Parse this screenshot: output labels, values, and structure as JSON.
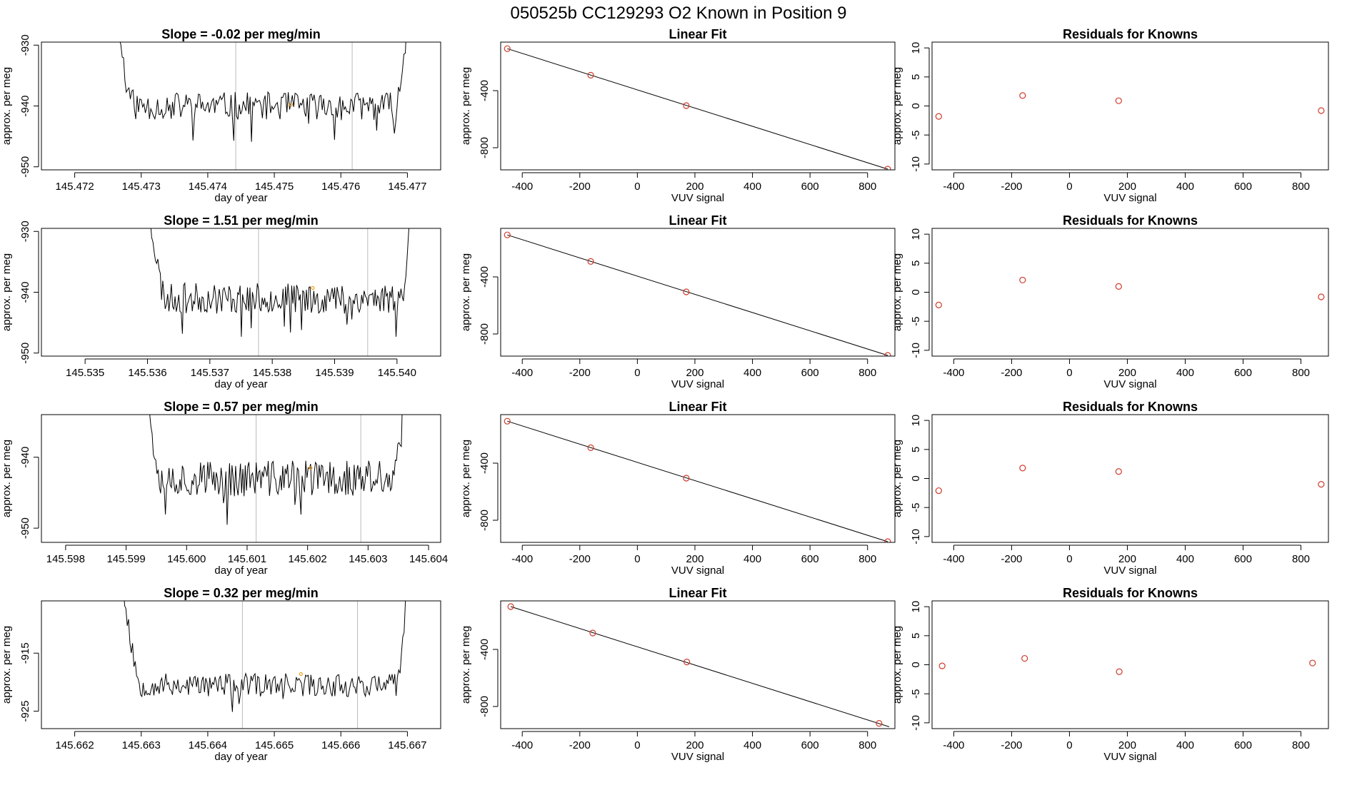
{
  "main_title": "050525b      CC129293    O2 Known in Position  9",
  "colors": {
    "line": "#000000",
    "points": "#d03a2a",
    "marker": "#f0a020",
    "vlines": "#bbbbbb"
  },
  "chart_data": [
    {
      "type": "line",
      "title": "Slope =  -0.02  per meg/min",
      "xlabel": "day of year",
      "ylabel": "approx. per meg",
      "xlim": [
        145.4715,
        145.4775
      ],
      "ylim": [
        -950.5,
        -929.5
      ],
      "xticks": [
        "145.472",
        "145.473",
        "145.474",
        "145.475",
        "145.476",
        "145.477"
      ],
      "yticks": [
        "-930",
        "-940",
        "-950"
      ],
      "x_start": 145.47255,
      "x_end": 145.47705,
      "baseline": -940,
      "noise": 2.3,
      "seed": 11,
      "vlines": [
        145.47442,
        145.47617
      ],
      "marker": {
        "x": 145.47525,
        "y": -939.8
      }
    },
    {
      "type": "scatter",
      "title": "Linear Fit",
      "xlabel": "VUV signal",
      "ylabel": "approx. per meg",
      "xlim": [
        -475,
        895
      ],
      "ylim": [
        -955,
        -60
      ],
      "xticks": [
        "-400",
        "-200",
        "0",
        "200",
        "400",
        "600",
        "800"
      ],
      "yticks": [
        "-400",
        "-800"
      ],
      "x": [
        -452,
        -162,
        170,
        870
      ],
      "y": [
        -106,
        -292,
        -505,
        -950
      ],
      "fit": [
        [
          -452,
          -106
        ],
        [
          870,
          -950
        ]
      ]
    },
    {
      "type": "scatter",
      "title": "Residuals for Knowns",
      "xlabel": "VUV signal",
      "ylabel": "approx. per meg",
      "xlim": [
        -475,
        895
      ],
      "ylim": [
        -11,
        11
      ],
      "xticks": [
        "-400",
        "-200",
        "0",
        "200",
        "400",
        "600",
        "800"
      ],
      "yticks": [
        "10",
        "5",
        "0",
        "-5",
        "-10"
      ],
      "x": [
        -452,
        -162,
        170,
        870
      ],
      "y": [
        -1.8,
        1.8,
        0.9,
        -0.8
      ]
    },
    {
      "type": "line",
      "title": "Slope =  1.51  per meg/min",
      "xlabel": "day of year",
      "ylabel": "approx. per meg",
      "xlim": [
        145.5343,
        145.5407
      ],
      "ylim": [
        -950.5,
        -929.5
      ],
      "xticks": [
        "145.535",
        "145.536",
        "145.537",
        "145.538",
        "145.539",
        "145.540"
      ],
      "yticks": [
        "-930",
        "-940",
        "-950"
      ],
      "x_start": 145.53595,
      "x_end": 145.54028,
      "baseline": -941,
      "noise": 2.5,
      "seed": 23,
      "vlines": [
        145.53778,
        145.53953
      ],
      "marker": {
        "x": 145.53865,
        "y": -939.3
      }
    },
    {
      "type": "scatter",
      "title": "Linear Fit",
      "xlabel": "VUV signal",
      "ylabel": "approx. per meg",
      "xlim": [
        -475,
        895
      ],
      "ylim": [
        -955,
        -60
      ],
      "xticks": [
        "-400",
        "-200",
        "0",
        "200",
        "400",
        "600",
        "800"
      ],
      "yticks": [
        "-400",
        "-800"
      ],
      "x": [
        -452,
        -162,
        170,
        870
      ],
      "y": [
        -106,
        -292,
        -505,
        -950
      ],
      "fit": [
        [
          -452,
          -106
        ],
        [
          870,
          -950
        ]
      ]
    },
    {
      "type": "scatter",
      "title": "Residuals for Knowns",
      "xlabel": "VUV signal",
      "ylabel": "approx. per meg",
      "xlim": [
        -475,
        895
      ],
      "ylim": [
        -11,
        11
      ],
      "xticks": [
        "-400",
        "-200",
        "0",
        "200",
        "400",
        "600",
        "800"
      ],
      "yticks": [
        "10",
        "5",
        "0",
        "-5",
        "-10"
      ],
      "x": [
        -452,
        -162,
        170,
        870
      ],
      "y": [
        -2.2,
        2.1,
        1.0,
        -0.8
      ]
    },
    {
      "type": "line",
      "title": "Slope =  0.57  per meg/min",
      "xlabel": "day of year",
      "ylabel": "approx. per meg",
      "xlim": [
        145.5976,
        145.6042
      ],
      "ylim": [
        -952,
        -934
      ],
      "xticks": [
        "145.598",
        "145.599",
        "145.600",
        "145.601",
        "145.602",
        "145.603",
        "145.604"
      ],
      "yticks": [
        "-940",
        "-950"
      ],
      "x_start": 145.59925,
      "x_end": 145.60365,
      "baseline": -943,
      "noise": 2.6,
      "seed": 37,
      "vlines": [
        145.60115,
        145.60288
      ],
      "marker": {
        "x": 145.60205,
        "y": -941.5
      }
    },
    {
      "type": "scatter",
      "title": "Linear Fit",
      "xlabel": "VUV signal",
      "ylabel": "approx. per meg",
      "xlim": [
        -475,
        895
      ],
      "ylim": [
        -955,
        -60
      ],
      "xticks": [
        "-400",
        "-200",
        "0",
        "200",
        "400",
        "600",
        "800"
      ],
      "yticks": [
        "-400",
        "-800"
      ],
      "x": [
        -452,
        -162,
        170,
        870
      ],
      "y": [
        -106,
        -292,
        -505,
        -950
      ],
      "fit": [
        [
          -452,
          -106
        ],
        [
          870,
          -950
        ]
      ]
    },
    {
      "type": "scatter",
      "title": "Residuals for Knowns",
      "xlabel": "VUV signal",
      "ylabel": "approx. per meg",
      "xlim": [
        -475,
        895
      ],
      "ylim": [
        -11,
        11
      ],
      "xticks": [
        "-400",
        "-200",
        "0",
        "200",
        "400",
        "600",
        "800"
      ],
      "yticks": [
        "10",
        "5",
        "0",
        "-5",
        "-10"
      ],
      "x": [
        -452,
        -162,
        170,
        870
      ],
      "y": [
        -2.1,
        1.8,
        1.2,
        -1.0
      ]
    },
    {
      "type": "line",
      "title": "Slope =  0.32  per meg/min",
      "xlabel": "day of year",
      "ylabel": "approx. per meg",
      "xlim": [
        145.6615,
        145.6675
      ],
      "ylim": [
        -928,
        -906
      ],
      "xticks": [
        "145.662",
        "145.663",
        "145.664",
        "145.665",
        "145.666",
        "145.667"
      ],
      "yticks": [
        "-915",
        "-925"
      ],
      "x_start": 145.66265,
      "x_end": 145.66705,
      "baseline": -920.5,
      "noise": 2.0,
      "seed": 53,
      "vlines": [
        145.66452,
        145.66625
      ],
      "marker": {
        "x": 145.6654,
        "y": -918.6
      }
    },
    {
      "type": "scatter",
      "title": "Linear Fit",
      "xlabel": "VUV signal",
      "ylabel": "approx. per meg",
      "xlim": [
        -475,
        895
      ],
      "ylim": [
        -955,
        -60
      ],
      "xticks": [
        "-400",
        "-200",
        "0",
        "200",
        "400",
        "600",
        "800"
      ],
      "yticks": [
        "-400",
        "-800"
      ],
      "x": [
        -440,
        -155,
        172,
        840
      ],
      "y": [
        -100,
        -285,
        -488,
        -918
      ],
      "fit": [
        [
          -440,
          -100
        ],
        [
          875,
          -942
        ]
      ]
    },
    {
      "type": "scatter",
      "title": "Residuals for Knowns",
      "xlabel": "VUV signal",
      "ylabel": "approx. per meg",
      "xlim": [
        -475,
        895
      ],
      "ylim": [
        -11,
        11
      ],
      "xticks": [
        "-400",
        "-200",
        "0",
        "200",
        "400",
        "600",
        "800"
      ],
      "yticks": [
        "10",
        "5",
        "0",
        "-5",
        "-10"
      ],
      "x": [
        -440,
        -155,
        172,
        840
      ],
      "y": [
        -0.2,
        1.1,
        -1.2,
        0.3
      ]
    }
  ]
}
